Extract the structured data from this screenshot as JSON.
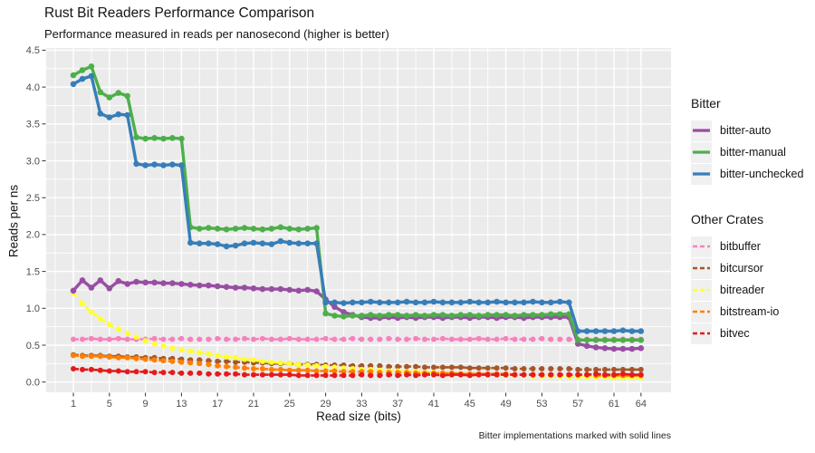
{
  "header": {
    "title": "Rust Bit Readers Performance Comparison",
    "subtitle": "Performance measured in reads per nanosecond (higher is better)"
  },
  "caption": "Bitter implementations marked with solid lines",
  "axes": {
    "x_label": "Read size (bits)",
    "y_label": "Reads per ns",
    "x_ticks": [
      1,
      5,
      9,
      13,
      17,
      21,
      25,
      29,
      33,
      37,
      41,
      45,
      49,
      53,
      57,
      61,
      64
    ],
    "y_ticks": [
      "0.0",
      "0.5",
      "1.0",
      "1.5",
      "2.0",
      "2.5",
      "3.0",
      "3.5",
      "4.0",
      "4.5"
    ]
  },
  "legend": {
    "groups": [
      {
        "title": "Bitter",
        "items": [
          "bitter-auto",
          "bitter-manual",
          "bitter-unchecked"
        ]
      },
      {
        "title": "Other Crates",
        "items": [
          "bitbuffer",
          "bitcursor",
          "bitreader",
          "bitstream-io",
          "bitvec"
        ]
      }
    ]
  },
  "chart_data": {
    "type": "line",
    "title": "Rust Bit Readers Performance Comparison",
    "subtitle": "Performance measured in reads per nanosecond (higher is better)",
    "xlabel": "Read size (bits)",
    "ylabel": "Reads per ns",
    "x_min": 1,
    "x_max": 64,
    "x_step": 1,
    "ylim": [
      0,
      4.5
    ],
    "legend_position": "right",
    "grid": "white major and minor gridlines on gray panel",
    "panel_bg": "#EBEBEB",
    "grid_color": "#FFFFFF",
    "series": [
      {
        "name": "bitbuffer",
        "group": "Other Crates",
        "color": "#F781BF",
        "dashed": true,
        "values": [
          0.58,
          0.58,
          0.59,
          0.58,
          0.58,
          0.59,
          0.58,
          0.58,
          0.58,
          0.59,
          0.58,
          0.58,
          0.59,
          0.58,
          0.58,
          0.58,
          0.59,
          0.58,
          0.58,
          0.59,
          0.58,
          0.59,
          0.58,
          0.58,
          0.59,
          0.58,
          0.58,
          0.58,
          0.59,
          0.58,
          0.58,
          0.59,
          0.58,
          0.58,
          0.58,
          0.59,
          0.58,
          0.58,
          0.59,
          0.58,
          0.58,
          0.59,
          0.58,
          0.58,
          0.58,
          0.59,
          0.58,
          0.58,
          0.59,
          0.58,
          0.58,
          0.58,
          0.59,
          0.58,
          0.58,
          0.58,
          0.58,
          0.58,
          0.58,
          0.58,
          0.58,
          0.58,
          0.58,
          0.58
        ]
      },
      {
        "name": "bitcursor",
        "group": "Other Crates",
        "color": "#A65628",
        "dashed": true,
        "values": [
          0.37,
          0.36,
          0.36,
          0.36,
          0.35,
          0.35,
          0.34,
          0.34,
          0.33,
          0.33,
          0.32,
          0.32,
          0.31,
          0.3,
          0.3,
          0.29,
          0.28,
          0.28,
          0.27,
          0.27,
          0.26,
          0.26,
          0.25,
          0.25,
          0.25,
          0.24,
          0.24,
          0.24,
          0.23,
          0.23,
          0.23,
          0.22,
          0.22,
          0.22,
          0.22,
          0.21,
          0.21,
          0.21,
          0.21,
          0.2,
          0.2,
          0.2,
          0.2,
          0.2,
          0.19,
          0.19,
          0.19,
          0.19,
          0.19,
          0.18,
          0.18,
          0.18,
          0.18,
          0.18,
          0.18,
          0.18,
          0.17,
          0.17,
          0.17,
          0.17,
          0.17,
          0.17,
          0.17,
          0.17
        ]
      },
      {
        "name": "bitreader",
        "group": "Other Crates",
        "color": "#FFFF33",
        "dashed": true,
        "values": [
          1.21,
          1.06,
          0.95,
          0.86,
          0.78,
          0.72,
          0.66,
          0.61,
          0.56,
          0.52,
          0.49,
          0.46,
          0.44,
          0.42,
          0.4,
          0.38,
          0.36,
          0.34,
          0.33,
          0.31,
          0.3,
          0.28,
          0.27,
          0.26,
          0.25,
          0.24,
          0.23,
          0.22,
          0.21,
          0.2,
          0.19,
          0.18,
          0.17,
          0.17,
          0.16,
          0.15,
          0.15,
          0.14,
          0.14,
          0.13,
          0.13,
          0.12,
          0.12,
          0.11,
          0.11,
          0.1,
          0.1,
          0.1,
          0.09,
          0.09,
          0.09,
          0.08,
          0.08,
          0.08,
          0.08,
          0.07,
          0.07,
          0.07,
          0.07,
          0.07,
          0.06,
          0.06,
          0.06,
          0.06
        ]
      },
      {
        "name": "bitstream-io",
        "group": "Other Crates",
        "color": "#FF7F00",
        "dashed": true,
        "values": [
          0.36,
          0.35,
          0.35,
          0.35,
          0.34,
          0.33,
          0.33,
          0.32,
          0.31,
          0.3,
          0.29,
          0.28,
          0.27,
          0.26,
          0.25,
          0.24,
          0.22,
          0.21,
          0.2,
          0.19,
          0.18,
          0.18,
          0.17,
          0.17,
          0.16,
          0.16,
          0.16,
          0.15,
          0.15,
          0.15,
          0.14,
          0.14,
          0.14,
          0.14,
          0.13,
          0.13,
          0.13,
          0.13,
          0.12,
          0.12,
          0.12,
          0.12,
          0.12,
          0.11,
          0.11,
          0.11,
          0.11,
          0.11,
          0.11,
          0.1,
          0.1,
          0.1,
          0.1,
          0.1,
          0.1,
          0.1,
          0.1,
          0.1,
          0.09,
          0.09,
          0.09,
          0.09,
          0.09,
          0.09
        ]
      },
      {
        "name": "bitvec",
        "group": "Other Crates",
        "color": "#E41A1C",
        "dashed": true,
        "values": [
          0.18,
          0.17,
          0.17,
          0.16,
          0.15,
          0.15,
          0.14,
          0.14,
          0.14,
          0.13,
          0.13,
          0.13,
          0.12,
          0.12,
          0.12,
          0.11,
          0.11,
          0.11,
          0.11,
          0.1,
          0.1,
          0.1,
          0.1,
          0.1,
          0.1,
          0.09,
          0.09,
          0.09,
          0.09,
          0.09,
          0.09,
          0.09,
          0.1,
          0.09,
          0.09,
          0.1,
          0.09,
          0.1,
          0.09,
          0.1,
          0.1,
          0.09,
          0.1,
          0.1,
          0.09,
          0.1,
          0.1,
          0.1,
          0.1,
          0.1,
          0.1,
          0.1,
          0.1,
          0.1,
          0.1,
          0.1,
          0.1,
          0.1,
          0.11,
          0.1,
          0.1,
          0.11,
          0.1,
          0.1
        ]
      },
      {
        "name": "bitter-auto",
        "group": "Bitter",
        "color": "#984EA3",
        "dashed": false,
        "values": [
          1.24,
          1.38,
          1.28,
          1.38,
          1.27,
          1.37,
          1.33,
          1.36,
          1.35,
          1.35,
          1.34,
          1.34,
          1.33,
          1.32,
          1.31,
          1.31,
          1.3,
          1.29,
          1.28,
          1.28,
          1.27,
          1.26,
          1.26,
          1.26,
          1.25,
          1.24,
          1.25,
          1.23,
          1.12,
          1.02,
          0.95,
          0.91,
          0.88,
          0.87,
          0.87,
          0.88,
          0.87,
          0.88,
          0.87,
          0.88,
          0.88,
          0.87,
          0.88,
          0.88,
          0.87,
          0.88,
          0.88,
          0.87,
          0.88,
          0.88,
          0.87,
          0.88,
          0.88,
          0.88,
          0.88,
          0.88,
          0.52,
          0.49,
          0.47,
          0.46,
          0.45,
          0.45,
          0.45,
          0.46
        ]
      },
      {
        "name": "bitter-manual",
        "group": "Bitter",
        "color": "#4DAF4A",
        "dashed": false,
        "values": [
          4.16,
          4.23,
          4.28,
          3.93,
          3.86,
          3.92,
          3.88,
          3.32,
          3.3,
          3.31,
          3.3,
          3.31,
          3.3,
          2.1,
          2.08,
          2.09,
          2.08,
          2.07,
          2.08,
          2.09,
          2.08,
          2.07,
          2.08,
          2.1,
          2.08,
          2.07,
          2.08,
          2.09,
          0.93,
          0.9,
          0.89,
          0.9,
          0.9,
          0.91,
          0.9,
          0.91,
          0.91,
          0.9,
          0.91,
          0.9,
          0.91,
          0.91,
          0.9,
          0.91,
          0.91,
          0.9,
          0.91,
          0.91,
          0.91,
          0.9,
          0.91,
          0.91,
          0.91,
          0.92,
          0.92,
          0.92,
          0.57,
          0.57,
          0.57,
          0.57,
          0.57,
          0.57,
          0.57,
          0.57
        ]
      },
      {
        "name": "bitter-unchecked",
        "group": "Bitter",
        "color": "#377EB8",
        "dashed": false,
        "values": [
          4.04,
          4.11,
          4.15,
          3.64,
          3.59,
          3.63,
          3.62,
          2.96,
          2.94,
          2.95,
          2.94,
          2.95,
          2.94,
          1.89,
          1.88,
          1.88,
          1.87,
          1.84,
          1.85,
          1.88,
          1.89,
          1.88,
          1.87,
          1.91,
          1.89,
          1.88,
          1.88,
          1.88,
          1.08,
          1.08,
          1.07,
          1.08,
          1.08,
          1.09,
          1.08,
          1.08,
          1.08,
          1.09,
          1.08,
          1.08,
          1.09,
          1.08,
          1.08,
          1.08,
          1.09,
          1.08,
          1.08,
          1.09,
          1.08,
          1.08,
          1.08,
          1.09,
          1.08,
          1.08,
          1.09,
          1.08,
          0.69,
          0.69,
          0.69,
          0.69,
          0.69,
          0.7,
          0.69,
          0.69
        ]
      }
    ]
  }
}
